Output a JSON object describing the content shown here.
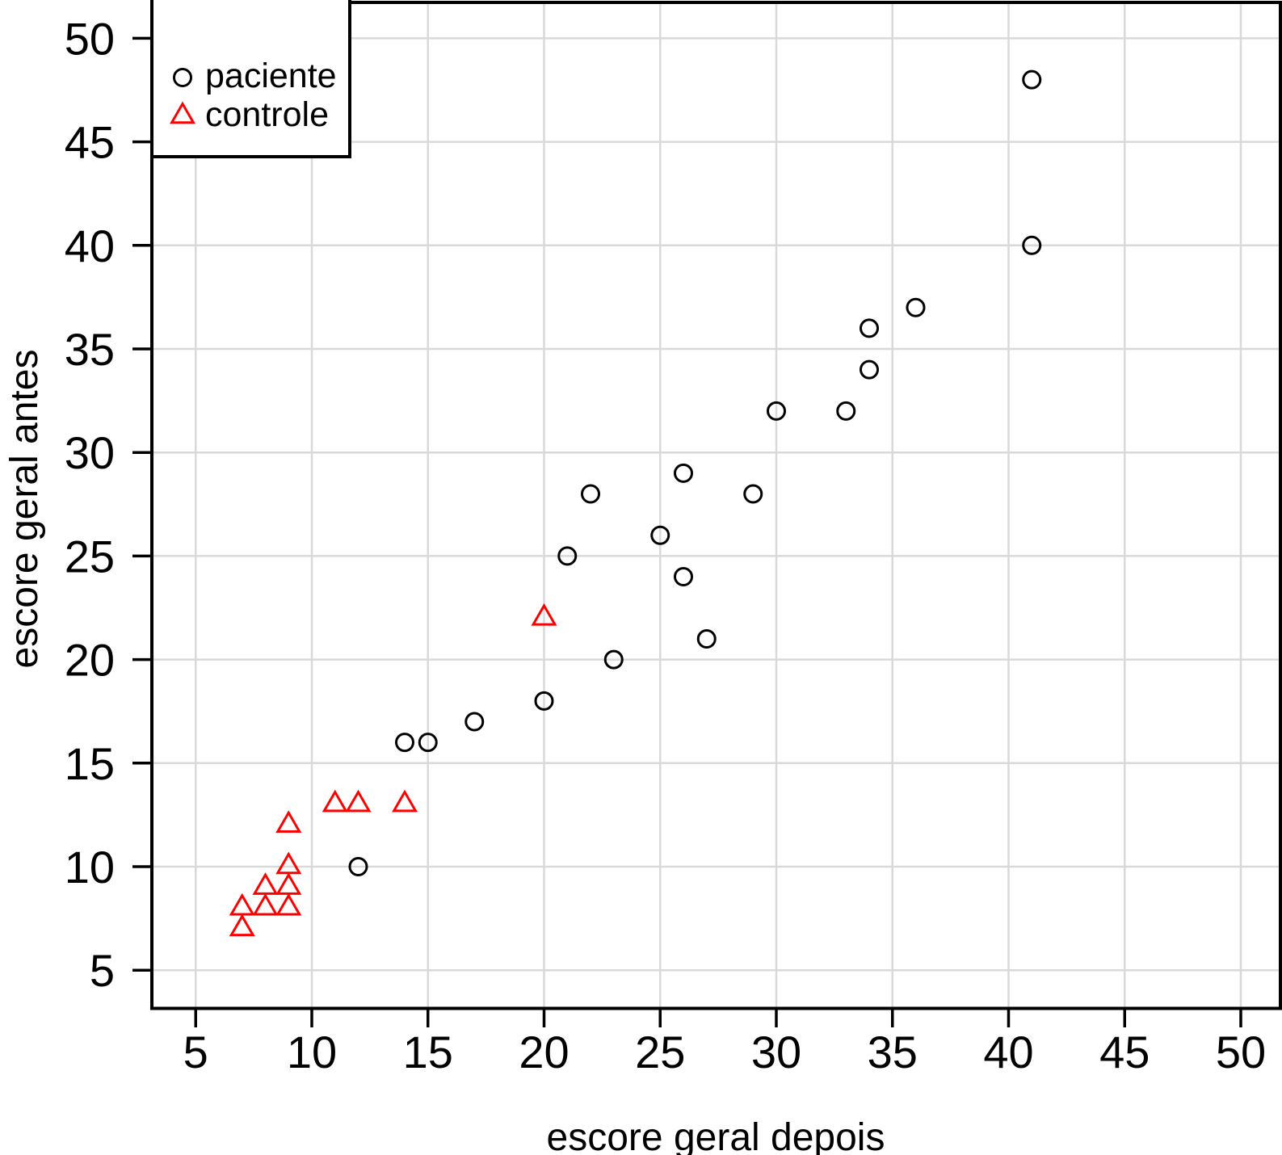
{
  "chart_data": {
    "type": "scatter",
    "title": "",
    "xlabel": "escore geral depois",
    "ylabel": "escore geral antes",
    "xlim": [
      3.1,
      51.7
    ],
    "ylim": [
      3.2,
      51.7
    ],
    "xticks": [
      5,
      10,
      15,
      20,
      25,
      30,
      35,
      40,
      45,
      50
    ],
    "yticks": [
      5,
      10,
      15,
      20,
      25,
      30,
      35,
      40,
      45,
      50
    ],
    "grid": true,
    "legend_position": "top-left",
    "series": [
      {
        "name": "paciente",
        "marker": "circle",
        "color": "#000000",
        "points": [
          [
            12,
            10
          ],
          [
            14,
            16
          ],
          [
            15,
            16
          ],
          [
            17,
            17
          ],
          [
            20,
            18
          ],
          [
            23,
            20
          ],
          [
            27,
            21
          ],
          [
            26,
            24
          ],
          [
            21,
            25
          ],
          [
            25,
            26
          ],
          [
            22,
            28
          ],
          [
            29,
            28
          ],
          [
            26,
            29
          ],
          [
            30,
            32
          ],
          [
            33,
            32
          ],
          [
            34,
            34
          ],
          [
            34,
            36
          ],
          [
            36,
            37
          ],
          [
            41,
            40
          ],
          [
            41,
            48
          ]
        ]
      },
      {
        "name": "controle",
        "marker": "triangle",
        "color": "#ff0000",
        "points": [
          [
            7,
            7
          ],
          [
            7,
            8
          ],
          [
            8,
            8
          ],
          [
            9,
            8
          ],
          [
            8,
            9
          ],
          [
            9,
            9
          ],
          [
            9,
            10
          ],
          [
            9,
            12
          ],
          [
            11,
            13
          ],
          [
            12,
            13
          ],
          [
            14,
            13
          ],
          [
            20,
            22
          ]
        ]
      }
    ]
  },
  "colors": {
    "background": "#ffffff",
    "gridline": "#d9d9d9",
    "axis": "#000000",
    "frame": "#000000",
    "legend_fill": "#ffffff"
  }
}
